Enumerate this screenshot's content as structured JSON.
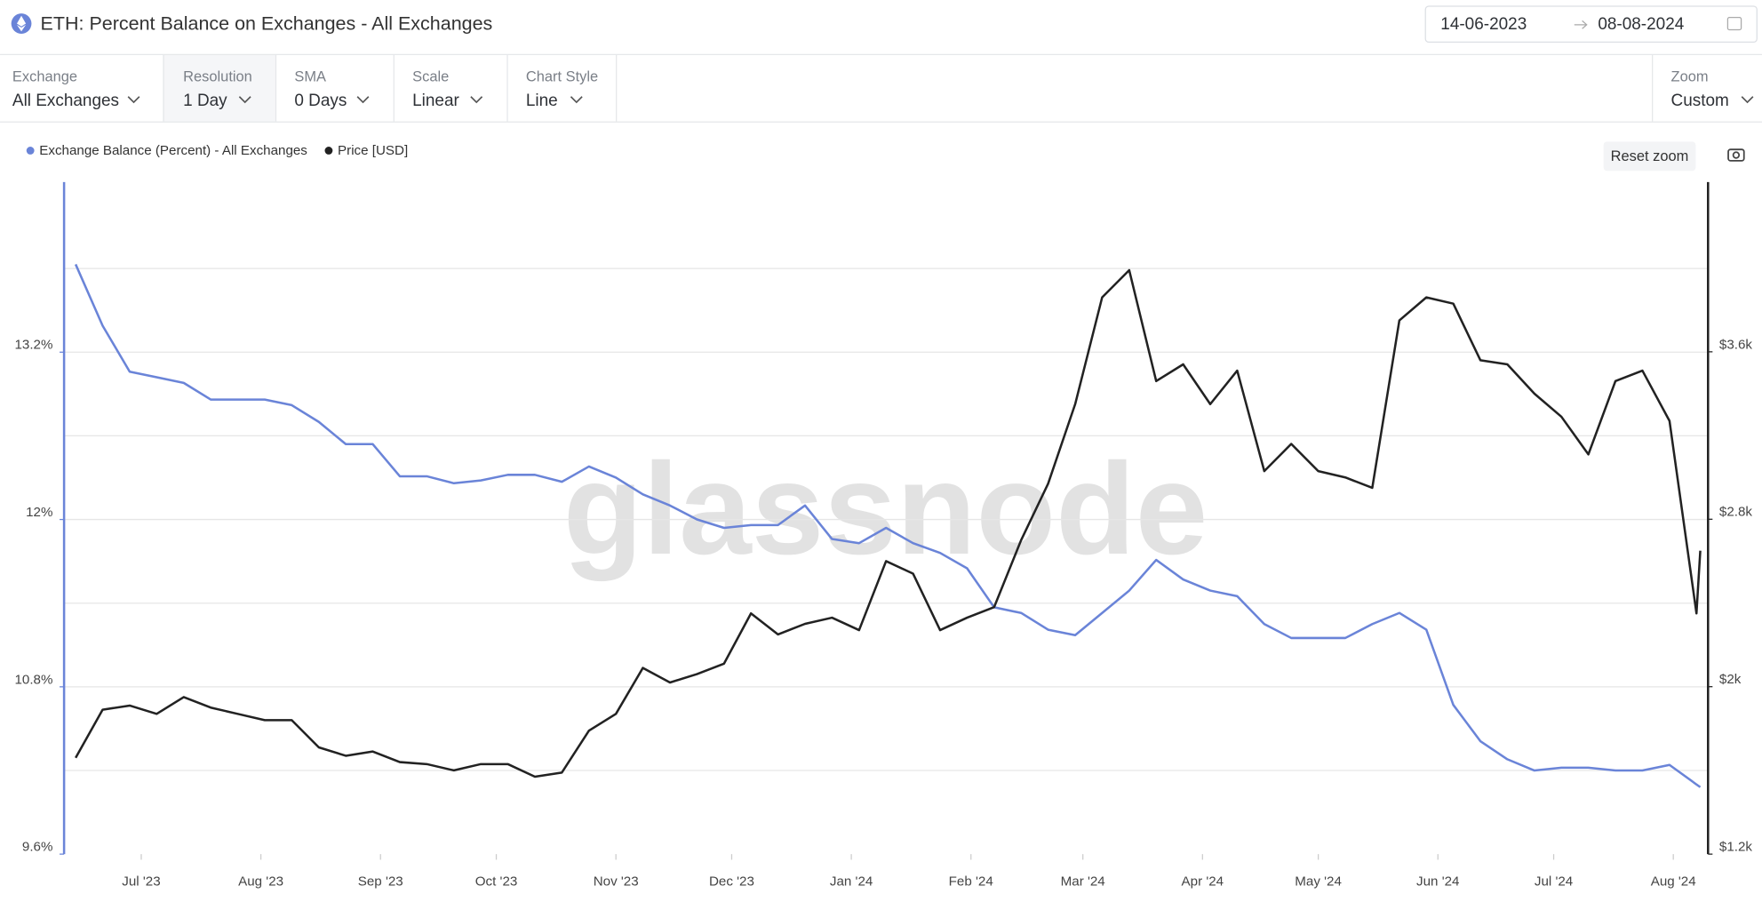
{
  "header": {
    "title": "ETH: Percent Balance on Exchanges - All Exchanges",
    "date_start": "14-06-2023",
    "date_end": "08-08-2024"
  },
  "controls": [
    {
      "label": "Exchange",
      "value": "All Exchanges"
    },
    {
      "label": "Resolution",
      "value": "1 Day"
    },
    {
      "label": "SMA",
      "value": "0 Days"
    },
    {
      "label": "Scale",
      "value": "Linear"
    },
    {
      "label": "Chart Style",
      "value": "Line"
    }
  ],
  "zoom": {
    "label": "Zoom",
    "value": "Custom"
  },
  "reset_zoom": "Reset zoom",
  "chart_data": {
    "type": "line",
    "watermark": "glassnode",
    "x": [
      "2023-06-14",
      "2023-06-21",
      "2023-06-28",
      "2023-07-05",
      "2023-07-12",
      "2023-07-19",
      "2023-07-26",
      "2023-08-02",
      "2023-08-09",
      "2023-08-16",
      "2023-08-23",
      "2023-08-30",
      "2023-09-06",
      "2023-09-13",
      "2023-09-20",
      "2023-09-27",
      "2023-10-04",
      "2023-10-11",
      "2023-10-18",
      "2023-10-25",
      "2023-11-01",
      "2023-11-08",
      "2023-11-15",
      "2023-11-22",
      "2023-11-29",
      "2023-12-06",
      "2023-12-13",
      "2023-12-20",
      "2023-12-27",
      "2024-01-03",
      "2024-01-10",
      "2024-01-17",
      "2024-01-24",
      "2024-01-31",
      "2024-02-07",
      "2024-02-14",
      "2024-02-21",
      "2024-02-28",
      "2024-03-06",
      "2024-03-13",
      "2024-03-20",
      "2024-03-27",
      "2024-04-03",
      "2024-04-10",
      "2024-04-17",
      "2024-04-24",
      "2024-05-01",
      "2024-05-08",
      "2024-05-15",
      "2024-05-22",
      "2024-05-29",
      "2024-06-05",
      "2024-06-12",
      "2024-06-19",
      "2024-06-26",
      "2024-07-03",
      "2024-07-10",
      "2024-07-17",
      "2024-07-24",
      "2024-07-31",
      "2024-08-07",
      "2024-08-08"
    ],
    "xlim": [
      "2023-06-11",
      "2024-08-10"
    ],
    "xticks": [
      {
        "value": "2023-07-01",
        "label": "Jul '23"
      },
      {
        "value": "2023-08-01",
        "label": "Aug '23"
      },
      {
        "value": "2023-09-01",
        "label": "Sep '23"
      },
      {
        "value": "2023-10-01",
        "label": "Oct '23"
      },
      {
        "value": "2023-11-01",
        "label": "Nov '23"
      },
      {
        "value": "2023-12-01",
        "label": "Dec '23"
      },
      {
        "value": "2024-01-01",
        "label": "Jan '24"
      },
      {
        "value": "2024-02-01",
        "label": "Feb '24"
      },
      {
        "value": "2024-03-01",
        "label": "Mar '24"
      },
      {
        "value": "2024-04-01",
        "label": "Apr '24"
      },
      {
        "value": "2024-05-01",
        "label": "May '24"
      },
      {
        "value": "2024-06-01",
        "label": "Jun '24"
      },
      {
        "value": "2024-07-01",
        "label": "Jul '24"
      },
      {
        "value": "2024-08-01",
        "label": "Aug '24"
      }
    ],
    "ylim": [
      9.6,
      14.42
    ],
    "yticks": [
      {
        "value": 9.6,
        "label": "9.6%"
      },
      {
        "value": 10.8,
        "label": "10.8%"
      },
      {
        "value": 12,
        "label": "12%"
      },
      {
        "value": 13.2,
        "label": "13.2%"
      }
    ],
    "ygrid": [
      10.2,
      10.8,
      11.4,
      12,
      12.6,
      13.2,
      13.8
    ],
    "y2lim": [
      1200,
      4411
    ],
    "y2ticks": [
      {
        "value": 1200,
        "label": "$1.2k"
      },
      {
        "value": 2000,
        "label": "$2k"
      },
      {
        "value": 2800,
        "label": "$2.8k"
      },
      {
        "value": 3600,
        "label": "$3.6k"
      }
    ],
    "grid": true,
    "legend": "top-left",
    "series": [
      {
        "name": "Exchange Balance (Percent) - All Exchanges",
        "color": "#6a84d8",
        "axis": "y",
        "values": [
          13.83,
          13.39,
          13.06,
          13.02,
          12.98,
          12.86,
          12.86,
          12.86,
          12.82,
          12.7,
          12.54,
          12.54,
          12.31,
          12.31,
          12.26,
          12.28,
          12.32,
          12.32,
          12.27,
          12.38,
          12.3,
          12.18,
          12.1,
          12.0,
          11.94,
          11.96,
          11.96,
          12.1,
          11.86,
          11.83,
          11.94,
          11.83,
          11.76,
          11.65,
          11.37,
          11.33,
          11.21,
          11.17,
          11.33,
          11.49,
          11.71,
          11.57,
          11.49,
          11.45,
          11.25,
          11.15,
          11.15,
          11.15,
          11.25,
          11.33,
          11.21,
          10.67,
          10.41,
          10.28,
          10.2,
          10.22,
          10.22,
          10.2,
          10.2,
          10.24,
          10.1,
          10.08
        ]
      },
      {
        "name": "Price [USD]",
        "color": "#222222",
        "axis": "y2",
        "values": [
          1660,
          1890,
          1910,
          1870,
          1950,
          1900,
          1870,
          1840,
          1840,
          1710,
          1670,
          1690,
          1640,
          1630,
          1600,
          1630,
          1630,
          1570,
          1590,
          1790,
          1870,
          2090,
          2020,
          2060,
          2110,
          2350,
          2250,
          2300,
          2330,
          2270,
          2600,
          2540,
          2270,
          2330,
          2380,
          2700,
          2970,
          3350,
          3860,
          3990,
          3460,
          3540,
          3350,
          3510,
          3030,
          3160,
          3030,
          3000,
          2950,
          3750,
          3860,
          3830,
          3560,
          3540,
          3400,
          3290,
          3110,
          3460,
          3510,
          3270,
          2350,
          2650
        ]
      }
    ]
  }
}
